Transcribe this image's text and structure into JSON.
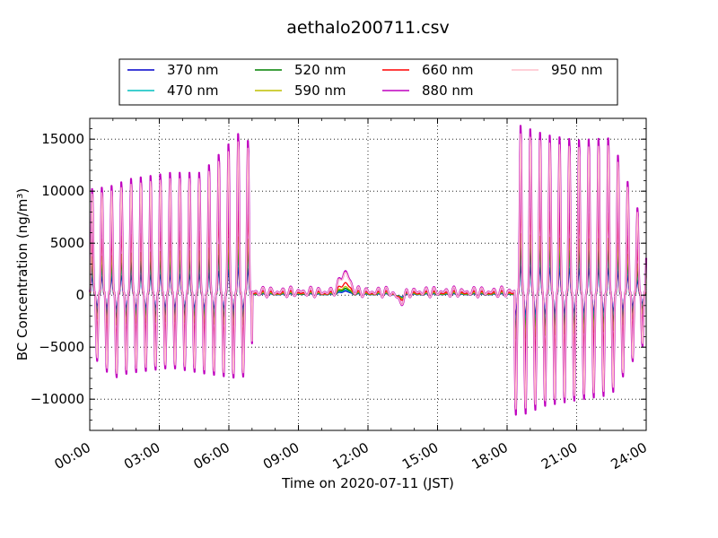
{
  "chart_data": {
    "type": "line",
    "title": "aethalo200711.csv",
    "xlabel": "Time on 2020-07-11 (JST)",
    "ylabel": "BC Concentration (ng/m³)",
    "xlim": [
      "00:00",
      "24:00"
    ],
    "ylim": [
      -13000,
      17000
    ],
    "x_ticks": [
      "00:00",
      "03:00",
      "06:00",
      "09:00",
      "12:00",
      "15:00",
      "18:00",
      "21:00",
      "24:00"
    ],
    "y_ticks": [
      -10000,
      -5000,
      0,
      5000,
      10000,
      15000
    ],
    "y_tick_labels": [
      "−10000",
      "−5000",
      "0",
      "5000",
      "10000",
      "15000"
    ],
    "grid": true,
    "legend_position": "top-center",
    "series": [
      {
        "name": "370 nm",
        "color": "#0000cc",
        "scale": 0.18
      },
      {
        "name": "470 nm",
        "color": "#00bfbf",
        "scale": 0.24
      },
      {
        "name": "520 nm",
        "color": "#008000",
        "scale": 0.3
      },
      {
        "name": "590 nm",
        "color": "#bfbf00",
        "scale": 0.38
      },
      {
        "name": "660 nm",
        "color": "#ff0000",
        "scale": 0.55
      },
      {
        "name": "880 nm",
        "color": "#bf00bf",
        "scale": 1.05
      },
      {
        "name": "950 nm",
        "color": "#ffc0cb",
        "scale": 1.0
      }
    ],
    "envelope_950nm": {
      "note": "approximate peak/trough concentrations (ng/m³) read off the 950 nm series",
      "peaks": [
        {
          "time": "00:10",
          "max": 9500,
          "min": -6000
        },
        {
          "time": "01:00",
          "max": 9800,
          "min": -8000
        },
        {
          "time": "01:40",
          "max": 10400,
          "min": -7500
        },
        {
          "time": "03:30",
          "max": 11000,
          "min": -7000
        },
        {
          "time": "04:50",
          "max": 11000,
          "min": -7500
        },
        {
          "time": "06:30",
          "max": 14800,
          "min": -8000
        },
        {
          "time": "11:00",
          "max": 2800,
          "min": -1200
        },
        {
          "time": "18:30",
          "max": 15400,
          "min": -11500
        },
        {
          "time": "19:40",
          "max": 14500,
          "min": -10500
        },
        {
          "time": "21:00",
          "max": 14000,
          "min": -10000
        },
        {
          "time": "22:30",
          "max": 14200,
          "min": -9500
        },
        {
          "time": "23:50",
          "max": 6500,
          "min": -5000
        }
      ],
      "quiet_period": {
        "from": "07:00",
        "to": "18:20",
        "range": [
          -1500,
          2500
        ]
      }
    }
  }
}
